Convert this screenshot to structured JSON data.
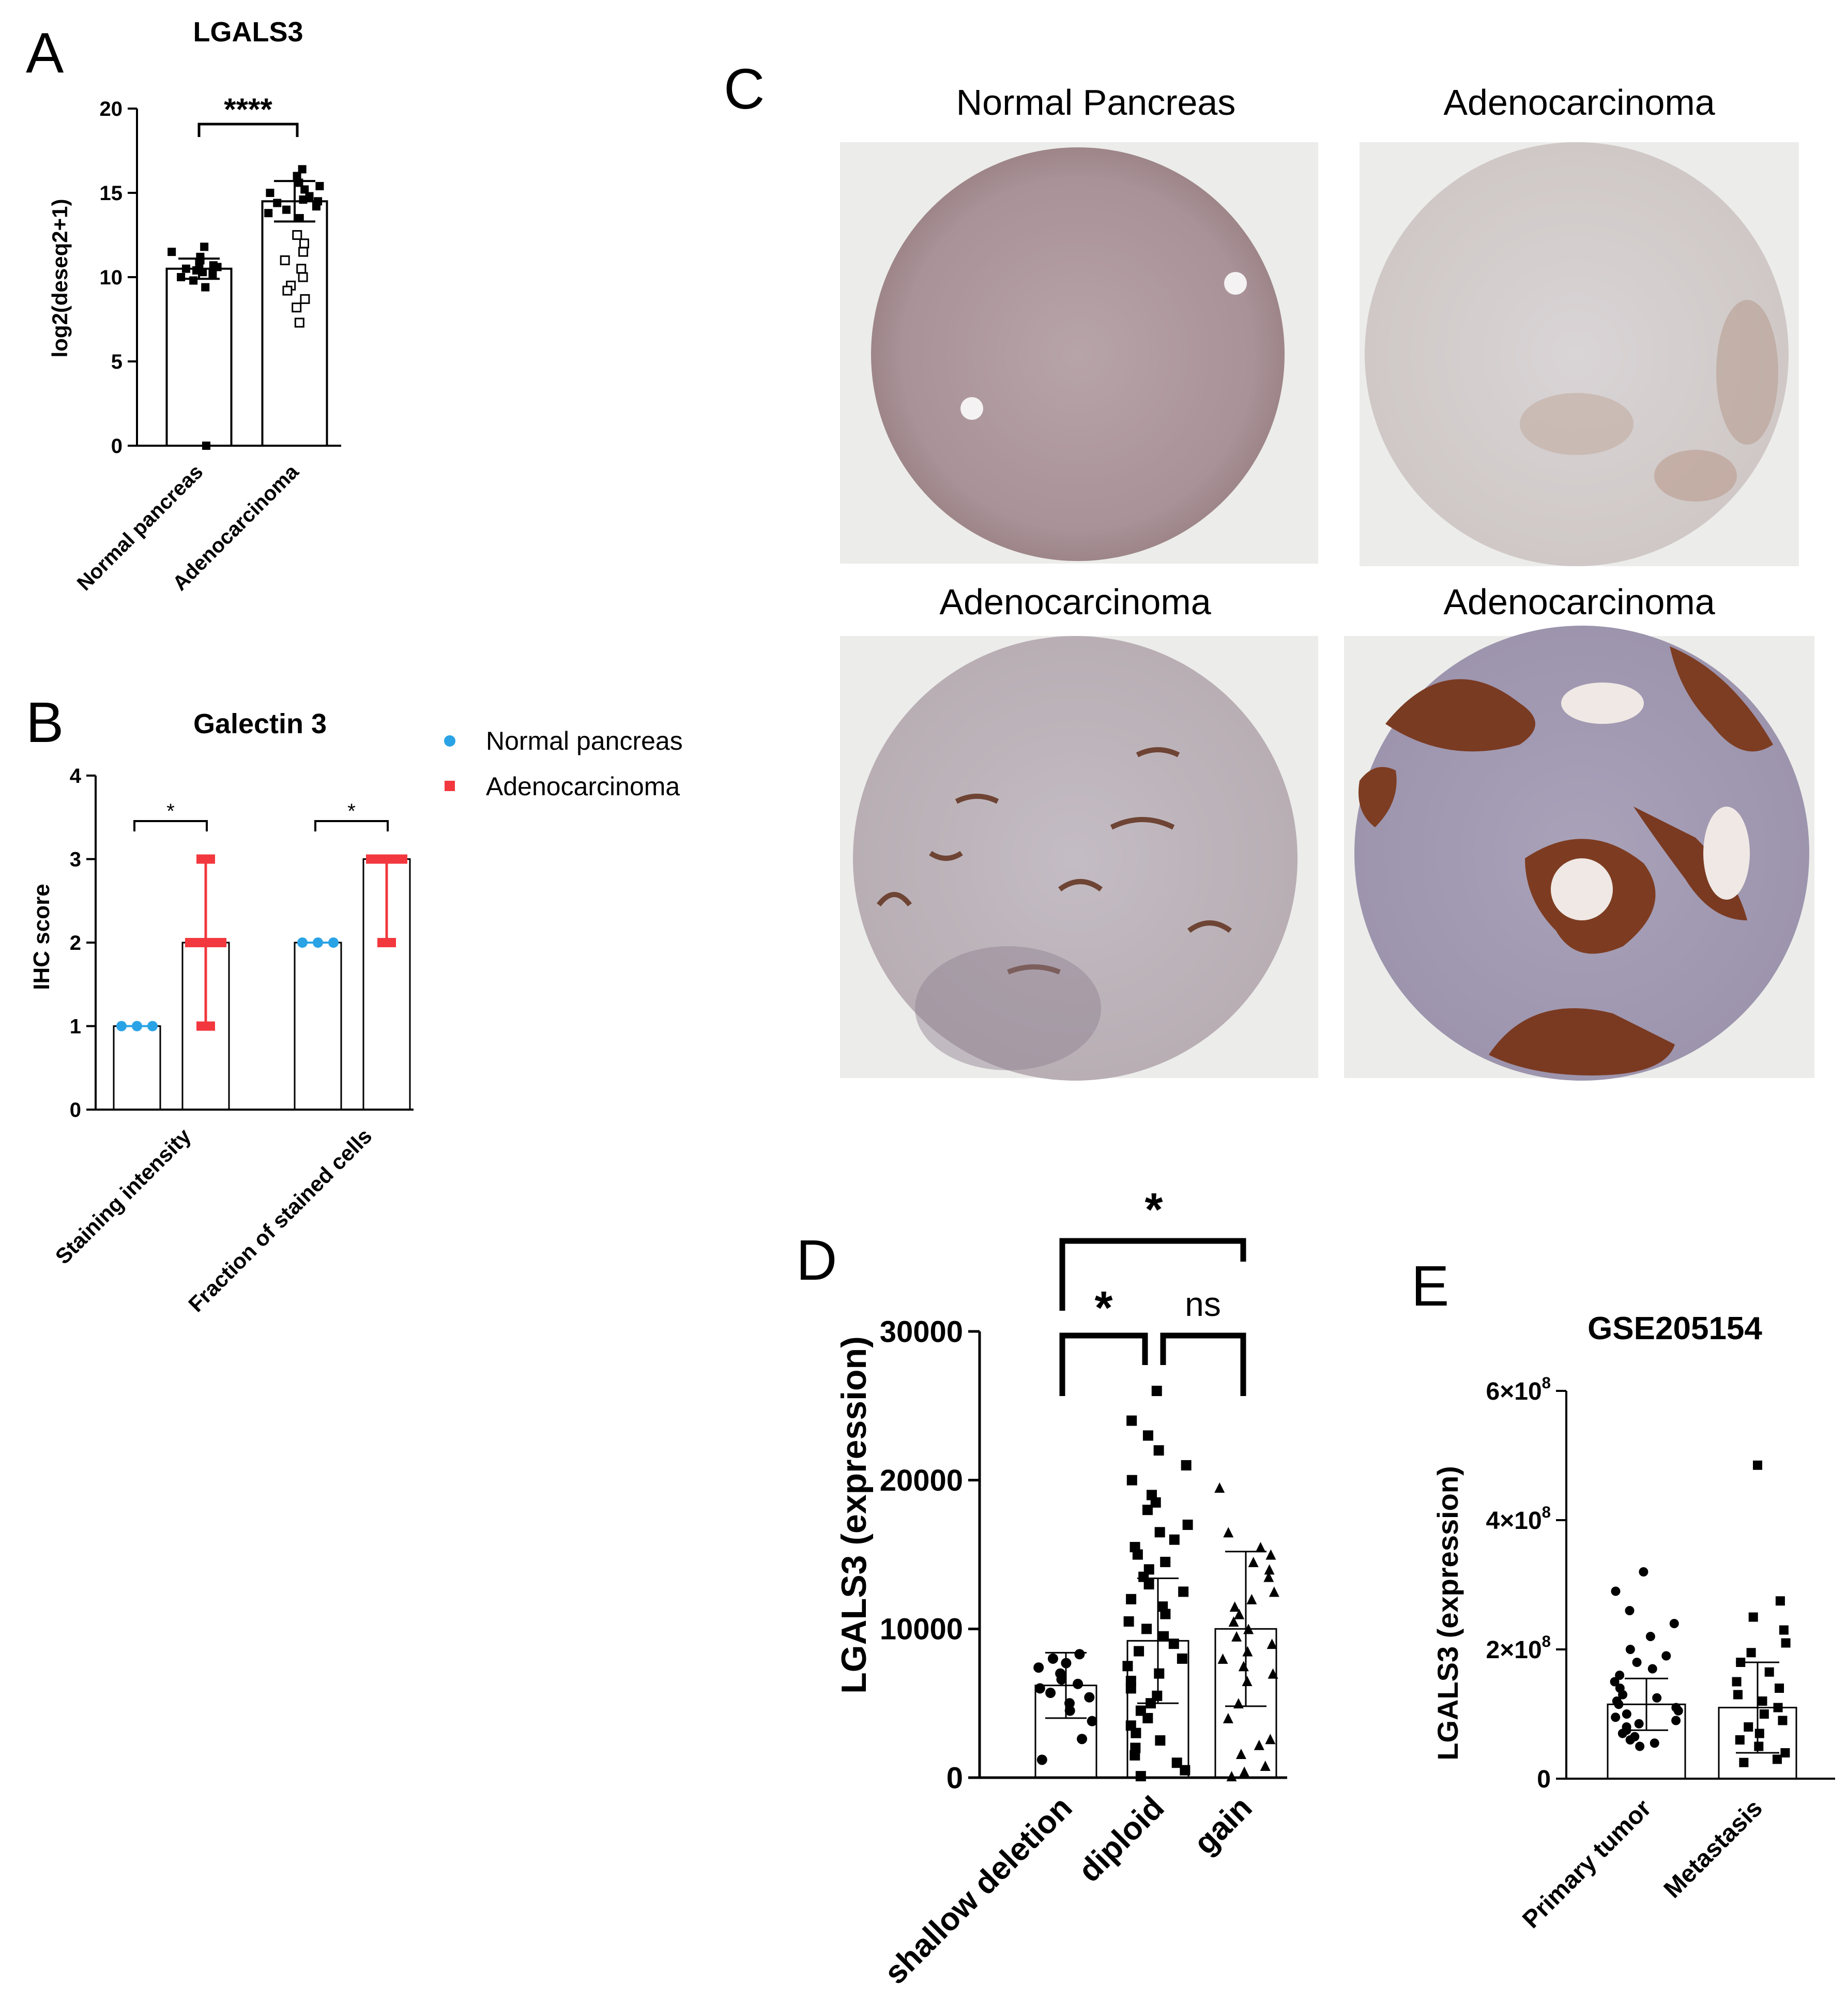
{
  "panels": {
    "a": "A",
    "b": "B",
    "c": "C",
    "d": "D",
    "e": "E"
  },
  "colors": {
    "normal": "#2aa3e6",
    "adeno": "#f2383e",
    "ink": "#000000",
    "tissue_bg": "#ececea"
  },
  "chart_data": [
    {
      "id": "A",
      "type": "bar",
      "title": "LGALS3",
      "ylabel": "log2(deseq2+1)",
      "categories": [
        "Normal pancreas",
        "Adenocarcinoma"
      ],
      "values": [
        10.5,
        14.5
      ],
      "sd": [
        0.6,
        1.2
      ],
      "ylim": [
        0,
        20
      ],
      "yticks": [
        0,
        5,
        10,
        15,
        20
      ],
      "points": [
        {
          "values": [
            10.0,
            10.2,
            10.3,
            10.4,
            10.5,
            10.6,
            10.7,
            10.8,
            11.0,
            11.2,
            11.5,
            11.8,
            9.4,
            9.8,
            0.0
          ]
        },
        {
          "values": [
            13.5,
            13.8,
            14.0,
            14.2,
            14.4,
            14.5,
            14.6,
            14.8,
            15.0,
            15.2,
            15.4,
            15.6,
            16.0,
            16.4,
            12.5,
            12.0,
            11.5,
            11.0,
            10.5,
            10.0,
            9.5,
            9.2,
            8.7,
            8.2,
            7.3
          ]
        }
      ],
      "significance": [
        "****"
      ]
    },
    {
      "id": "B",
      "type": "bar",
      "title": "Galectin 3",
      "ylabel": "IHC score",
      "categories": [
        "Staining intensity",
        "Fraction of stained cells"
      ],
      "series": [
        {
          "name": "Normal pancreas",
          "values": [
            1,
            2
          ],
          "points": [
            [
              1,
              1,
              1
            ],
            [
              2,
              2,
              2
            ]
          ]
        },
        {
          "name": "Adenocarcinoma",
          "values": [
            2,
            3
          ],
          "range": [
            [
              1,
              3
            ],
            [
              2,
              3
            ]
          ]
        }
      ],
      "ylim": [
        0,
        4
      ],
      "yticks": [
        0,
        1,
        2,
        3,
        4
      ],
      "legend": "right",
      "significance": [
        "*",
        "*"
      ]
    },
    {
      "id": "D",
      "type": "bar",
      "ylabel": "LGALS3 (expression)",
      "categories": [
        "shallow deletion",
        "diploid",
        "gain"
      ],
      "values": [
        6200,
        9200,
        10000
      ],
      "sd": [
        2200,
        4200,
        5200
      ],
      "ylim": [
        0,
        30000
      ],
      "yticks": [
        0,
        10000,
        20000,
        30000
      ],
      "points": [
        {
          "values": [
            8300,
            8000,
            7700,
            7400,
            7000,
            6600,
            6300,
            6000,
            5700,
            5400,
            5000,
            4500,
            3800,
            2600,
            1200
          ]
        },
        {
          "values": [
            26000,
            24000,
            23000,
            22000,
            21000,
            20000,
            19000,
            18500,
            18000,
            17000,
            16500,
            16000,
            15500,
            15000,
            14500,
            14000,
            13500,
            13000,
            12500,
            12000,
            11500,
            11000,
            10500,
            10000,
            9500,
            9000,
            8500,
            8000,
            7500,
            7000,
            6500,
            6000,
            5500,
            5000,
            4500,
            4000,
            3500,
            3000,
            2500,
            2000,
            1500,
            1000,
            500,
            100
          ]
        },
        {
          "values": [
            19500,
            16500,
            15500,
            15000,
            14500,
            14000,
            13500,
            12500,
            12000,
            11500,
            11000,
            10500,
            10000,
            9500,
            9000,
            8500,
            8000,
            7500,
            7000,
            6500,
            5000,
            4000,
            2600,
            2200,
            1600,
            800,
            400,
            100
          ]
        }
      ],
      "significance": [
        "*",
        "ns",
        "*"
      ]
    },
    {
      "id": "E",
      "type": "bar",
      "title": "GSE205154",
      "ylabel": "LGALS3 (expression)",
      "categories": [
        "Primary tumor",
        "Metastasis"
      ],
      "values": [
        115000000,
        110000000
      ],
      "sd": [
        40000000,
        70000000
      ],
      "ylim": [
        0,
        600000000
      ],
      "yticks": [
        0,
        200000000,
        400000000,
        600000000
      ],
      "ytick_base": "×10",
      "ytick_labels": [
        {
          "mantissa": "0",
          "exp": ""
        },
        {
          "mantissa": "2",
          "exp": "8"
        },
        {
          "mantissa": "4",
          "exp": "8"
        },
        {
          "mantissa": "6",
          "exp": "8"
        }
      ],
      "points": [
        {
          "values": [
            320000000,
            290000000,
            260000000,
            240000000,
            220000000,
            200000000,
            190000000,
            180000000,
            170000000,
            160000000,
            150000000,
            140000000,
            130000000,
            125000000,
            120000000,
            115000000,
            110000000,
            105000000,
            100000000,
            95000000,
            90000000,
            85000000,
            80000000,
            75000000,
            70000000,
            65000000,
            60000000,
            55000000,
            50000000
          ]
        },
        {
          "values": [
            485000000,
            275000000,
            250000000,
            230000000,
            210000000,
            195000000,
            180000000,
            165000000,
            150000000,
            140000000,
            130000000,
            120000000,
            110000000,
            100000000,
            90000000,
            80000000,
            70000000,
            60000000,
            50000000,
            40000000,
            30000000,
            25000000
          ]
        }
      ]
    }
  ],
  "panel_c": {
    "images": [
      {
        "label": "Normal Pancreas"
      },
      {
        "label": "Adenocarcinoma"
      },
      {
        "label": "Adenocarcinoma"
      },
      {
        "label": "Adenocarcinoma"
      }
    ]
  }
}
